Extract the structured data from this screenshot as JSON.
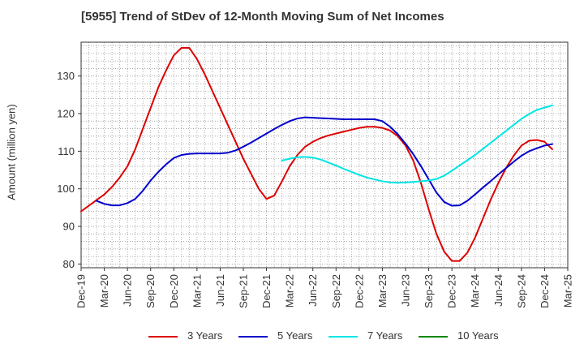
{
  "chart_data": {
    "type": "line",
    "title": "[5955]  Trend of StDev of 12-Month Moving Sum of Net Incomes",
    "xlabel": "",
    "ylabel": "Amount (million yen)",
    "ylim": [
      79,
      139
    ],
    "yticks": [
      80,
      90,
      100,
      110,
      120,
      130
    ],
    "xlim": [
      "2019-12",
      "2025-03"
    ],
    "xticks": [
      "Dec-19",
      "Mar-20",
      "Jun-20",
      "Sep-20",
      "Dec-20",
      "Mar-21",
      "Jun-21",
      "Sep-21",
      "Dec-21",
      "Mar-22",
      "Jun-22",
      "Sep-22",
      "Dec-22",
      "Mar-23",
      "Jun-23",
      "Sep-23",
      "Dec-23",
      "Mar-24",
      "Jun-24",
      "Sep-24",
      "Dec-24",
      "Mar-25"
    ],
    "grid": true,
    "legend_position": "bottom",
    "series": [
      {
        "name": "3 Years",
        "color": "#dd0000",
        "points": [
          [
            "2019-12",
            94
          ],
          [
            "2020-01",
            95.5
          ],
          [
            "2020-02",
            97
          ],
          [
            "2020-03",
            98.5
          ],
          [
            "2020-04",
            100.5
          ],
          [
            "2020-05",
            103
          ],
          [
            "2020-06",
            106
          ],
          [
            "2020-07",
            110.5
          ],
          [
            "2020-08",
            116
          ],
          [
            "2020-09",
            121.5
          ],
          [
            "2020-10",
            127
          ],
          [
            "2020-11",
            131.5
          ],
          [
            "2020-12",
            135.5
          ],
          [
            "2021-01",
            137.5
          ],
          [
            "2021-02",
            137.5
          ],
          [
            "2021-03",
            134.5
          ],
          [
            "2021-04",
            130.5
          ],
          [
            "2021-05",
            126
          ],
          [
            "2021-06",
            121.5
          ],
          [
            "2021-07",
            117
          ],
          [
            "2021-08",
            112.5
          ],
          [
            "2021-09",
            108
          ],
          [
            "2021-10",
            104
          ],
          [
            "2021-11",
            100
          ],
          [
            "2021-12",
            97.3
          ],
          [
            "2022-01",
            98.2
          ],
          [
            "2022-02",
            102
          ],
          [
            "2022-03",
            106
          ],
          [
            "2022-04",
            109
          ],
          [
            "2022-05",
            111.2
          ],
          [
            "2022-06",
            112.5
          ],
          [
            "2022-07",
            113.5
          ],
          [
            "2022-08",
            114.2
          ],
          [
            "2022-09",
            114.7
          ],
          [
            "2022-10",
            115.2
          ],
          [
            "2022-11",
            115.7
          ],
          [
            "2022-12",
            116.2
          ],
          [
            "2023-01",
            116.5
          ],
          [
            "2023-02",
            116.5
          ],
          [
            "2023-03",
            116.2
          ],
          [
            "2023-04",
            115.5
          ],
          [
            "2023-05",
            114
          ],
          [
            "2023-06",
            111.5
          ],
          [
            "2023-07",
            107.5
          ],
          [
            "2023-08",
            101.5
          ],
          [
            "2023-09",
            94.5
          ],
          [
            "2023-10",
            88
          ],
          [
            "2023-11",
            83.3
          ],
          [
            "2023-12",
            80.8
          ],
          [
            "2024-01",
            80.8
          ],
          [
            "2024-02",
            83
          ],
          [
            "2024-03",
            87
          ],
          [
            "2024-04",
            92
          ],
          [
            "2024-05",
            97
          ],
          [
            "2024-06",
            101.5
          ],
          [
            "2024-07",
            105.5
          ],
          [
            "2024-08",
            108.8
          ],
          [
            "2024-09",
            111.5
          ],
          [
            "2024-10",
            112.8
          ],
          [
            "2024-11",
            113
          ],
          [
            "2024-12",
            112.5
          ],
          [
            "2025-01",
            110.5
          ]
        ]
      },
      {
        "name": "5 Years",
        "color": "#0000cc",
        "points": [
          [
            "2020-02",
            96.8
          ],
          [
            "2020-03",
            96
          ],
          [
            "2020-04",
            95.6
          ],
          [
            "2020-05",
            95.6
          ],
          [
            "2020-06",
            96.2
          ],
          [
            "2020-07",
            97.3
          ],
          [
            "2020-08",
            99.5
          ],
          [
            "2020-09",
            102.2
          ],
          [
            "2020-10",
            104.5
          ],
          [
            "2020-11",
            106.5
          ],
          [
            "2020-12",
            108.2
          ],
          [
            "2021-01",
            109
          ],
          [
            "2021-02",
            109.3
          ],
          [
            "2021-03",
            109.4
          ],
          [
            "2021-04",
            109.4
          ],
          [
            "2021-05",
            109.4
          ],
          [
            "2021-06",
            109.4
          ],
          [
            "2021-07",
            109.6
          ],
          [
            "2021-08",
            110.2
          ],
          [
            "2021-09",
            111.2
          ],
          [
            "2021-10",
            112.3
          ],
          [
            "2021-11",
            113.5
          ],
          [
            "2021-12",
            114.7
          ],
          [
            "2022-01",
            115.9
          ],
          [
            "2022-02",
            117
          ],
          [
            "2022-03",
            118
          ],
          [
            "2022-04",
            118.7
          ],
          [
            "2022-05",
            119
          ],
          [
            "2022-06",
            118.9
          ],
          [
            "2022-07",
            118.8
          ],
          [
            "2022-08",
            118.7
          ],
          [
            "2022-09",
            118.6
          ],
          [
            "2022-10",
            118.5
          ],
          [
            "2022-11",
            118.5
          ],
          [
            "2022-12",
            118.5
          ],
          [
            "2023-01",
            118.5
          ],
          [
            "2023-02",
            118.5
          ],
          [
            "2023-03",
            118
          ],
          [
            "2023-04",
            116.5
          ],
          [
            "2023-05",
            114.5
          ],
          [
            "2023-06",
            112
          ],
          [
            "2023-07",
            109.2
          ],
          [
            "2023-08",
            106
          ],
          [
            "2023-09",
            102.5
          ],
          [
            "2023-10",
            99
          ],
          [
            "2023-11",
            96.5
          ],
          [
            "2023-12",
            95.5
          ],
          [
            "2024-01",
            95.6
          ],
          [
            "2024-02",
            96.8
          ],
          [
            "2024-03",
            98.5
          ],
          [
            "2024-04",
            100.3
          ],
          [
            "2024-05",
            102
          ],
          [
            "2024-06",
            103.8
          ],
          [
            "2024-07",
            105.5
          ],
          [
            "2024-08",
            107.2
          ],
          [
            "2024-09",
            108.8
          ],
          [
            "2024-10",
            110
          ],
          [
            "2024-11",
            110.8
          ],
          [
            "2024-12",
            111.5
          ],
          [
            "2025-01",
            111.9
          ]
        ]
      },
      {
        "name": "7 Years",
        "color": "#00e5e5",
        "points": [
          [
            "2022-02",
            107.5
          ],
          [
            "2022-03",
            108
          ],
          [
            "2022-04",
            108.4
          ],
          [
            "2022-05",
            108.5
          ],
          [
            "2022-06",
            108.3
          ],
          [
            "2022-07",
            107.8
          ],
          [
            "2022-08",
            107
          ],
          [
            "2022-09",
            106.2
          ],
          [
            "2022-10",
            105.3
          ],
          [
            "2022-11",
            104.5
          ],
          [
            "2022-12",
            103.7
          ],
          [
            "2023-01",
            103
          ],
          [
            "2023-02",
            102.5
          ],
          [
            "2023-03",
            102
          ],
          [
            "2023-04",
            101.7
          ],
          [
            "2023-05",
            101.6
          ],
          [
            "2023-06",
            101.7
          ],
          [
            "2023-07",
            101.8
          ],
          [
            "2023-08",
            102
          ],
          [
            "2023-09",
            102.2
          ],
          [
            "2023-10",
            102.6
          ],
          [
            "2023-11",
            103.5
          ],
          [
            "2023-12",
            104.8
          ],
          [
            "2024-01",
            106.2
          ],
          [
            "2024-02",
            107.6
          ],
          [
            "2024-03",
            109
          ],
          [
            "2024-04",
            110.6
          ],
          [
            "2024-05",
            112.2
          ],
          [
            "2024-06",
            113.8
          ],
          [
            "2024-07",
            115.4
          ],
          [
            "2024-08",
            117
          ],
          [
            "2024-09",
            118.6
          ],
          [
            "2024-10",
            119.9
          ],
          [
            "2024-11",
            121
          ],
          [
            "2024-12",
            121.6
          ],
          [
            "2025-01",
            122.2
          ]
        ]
      },
      {
        "name": "10 Years",
        "color": "#008800",
        "points": []
      }
    ]
  }
}
